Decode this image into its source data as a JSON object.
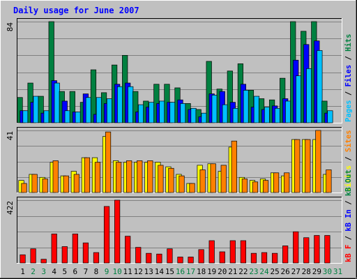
{
  "title": "Daily usage for June 2007",
  "chart_data": {
    "type": "bar",
    "categories": [
      "1",
      "2",
      "3",
      "4",
      "5",
      "6",
      "7",
      "8",
      "9",
      "10",
      "11",
      "12",
      "13",
      "14",
      "15",
      "16",
      "17",
      "18",
      "19",
      "20",
      "21",
      "22",
      "23",
      "24",
      "25",
      "26",
      "27",
      "28",
      "29",
      "30",
      "31"
    ],
    "weekend_days": [
      "2",
      "3",
      "9",
      "10",
      "16",
      "17",
      "23",
      "24",
      "30",
      "31"
    ],
    "panels": [
      {
        "id": "hits",
        "ymax": 84,
        "ymax_label": "84",
        "legend": [
          {
            "text": "Pages",
            "color": "#00c0ff"
          },
          {
            "text": " / ",
            "color": "#000000"
          },
          {
            "text": "Files",
            "color": "#0000ff"
          },
          {
            "text": " / ",
            "color": "#000000"
          },
          {
            "text": "Hits",
            "color": "#008040"
          }
        ],
        "series": [
          {
            "name": "Hits",
            "color": "#008040",
            "values": [
              21,
              33,
              22,
              84,
              26,
              26,
              17,
              44,
              25,
              48,
              56,
              26,
              18,
              32,
              32,
              29,
              16,
              11,
              51,
              28,
              43,
              49,
              27,
              20,
              19,
              37,
              84,
              76,
              84,
              18,
              0
            ]
          },
          {
            "name": "Files",
            "color": "#0000ff",
            "values": [
              10,
              17,
              8,
              35,
              18,
              9,
              24,
              7,
              16,
              32,
              33,
              9,
              13,
              16,
              17,
              19,
              11,
              5,
              24,
              26,
              17,
              32,
              13,
              11,
              14,
              20,
              52,
              65,
              68,
              8,
              0
            ]
          },
          {
            "name": "Pages",
            "color": "#00c0ff",
            "values": [
              10,
              22,
              10,
              33,
              10,
              9,
              21,
              21,
              20,
              30,
              30,
              15,
              17,
              18,
              17,
              16,
              12,
              8,
              23,
              15,
              12,
              27,
              22,
              13,
              12,
              18,
              39,
              45,
              60,
              10,
              0
            ]
          }
        ]
      },
      {
        "id": "visits",
        "ymax": 41,
        "ymax_label": "41",
        "legend": [
          {
            "text": "Visits",
            "color": "#ffff00"
          },
          {
            "text": " / ",
            "color": "#000000"
          },
          {
            "text": "Sites",
            "color": "#ff8000"
          }
        ],
        "series": [
          {
            "name": "Visits",
            "color": "#ffff00",
            "values": [
              8,
              12,
              10,
              20,
              11,
              14,
              23,
              23,
              37,
              21,
              20,
              20,
              20,
              20,
              17,
              12,
              6,
              18,
              19,
              14,
              30,
              10,
              8,
              9,
              13,
              11,
              35,
              35,
              35,
              12,
              0
            ]
          },
          {
            "name": "Sites",
            "color": "#ff8000",
            "values": [
              6,
              12,
              9,
              21,
              11,
              12,
              23,
              20,
              40,
              20,
              21,
              21,
              21,
              18,
              16,
              11,
              6,
              15,
              19,
              18,
              34,
              9,
              7,
              8,
              13,
              13,
              35,
              35,
              41,
              15,
              0
            ]
          }
        ]
      },
      {
        "id": "kbytes",
        "ymax": 422,
        "ymax_label": "422",
        "legend": [
          {
            "text": "kB F",
            "color": "#ff0000"
          },
          {
            "text": " / ",
            "color": "#000000"
          },
          {
            "text": "kB In",
            "color": "#0000ff"
          },
          {
            "text": " / ",
            "color": "#000000"
          },
          {
            "text": "kB Out",
            "color": "#008040"
          }
        ],
        "series": [
          {
            "name": "kB F",
            "color": "#ff0000",
            "values": [
              55,
              95,
              25,
              195,
              110,
              195,
              135,
              70,
              380,
              422,
              180,
              105,
              65,
              60,
              95,
              40,
              40,
              90,
              150,
              75,
              150,
              150,
              65,
              70,
              65,
              115,
              210,
              170,
              185,
              185,
              0
            ]
          }
        ]
      }
    ]
  }
}
